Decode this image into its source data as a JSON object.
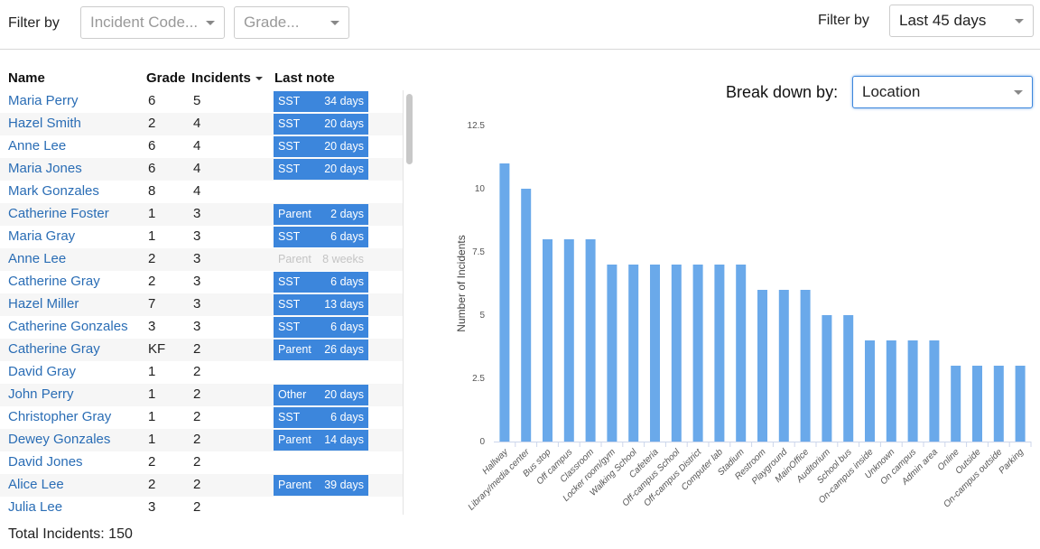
{
  "filters": {
    "left_label": "Filter by",
    "incident_code_placeholder": "Incident Code...",
    "grade_placeholder": "Grade...",
    "right_label": "Filter by",
    "time_range": "Last 45 days"
  },
  "table": {
    "headers": {
      "name": "Name",
      "grade": "Grade",
      "incidents": "Incidents",
      "last_note": "Last note"
    },
    "rows": [
      {
        "name": "Maria Perry",
        "grade": "6",
        "incidents": "5",
        "note_type": "SST",
        "note_age": "34 days",
        "note_style": "filled"
      },
      {
        "name": "Hazel Smith",
        "grade": "2",
        "incidents": "4",
        "note_type": "SST",
        "note_age": "20 days",
        "note_style": "filled"
      },
      {
        "name": "Anne Lee",
        "grade": "6",
        "incidents": "4",
        "note_type": "SST",
        "note_age": "20 days",
        "note_style": "filled"
      },
      {
        "name": "Maria Jones",
        "grade": "6",
        "incidents": "4",
        "note_type": "SST",
        "note_age": "20 days",
        "note_style": "filled"
      },
      {
        "name": "Mark Gonzales",
        "grade": "8",
        "incidents": "4",
        "note_type": "",
        "note_age": "",
        "note_style": "none"
      },
      {
        "name": "Catherine Foster",
        "grade": "1",
        "incidents": "3",
        "note_type": "Parent",
        "note_age": "2 days",
        "note_style": "filled"
      },
      {
        "name": "Maria Gray",
        "grade": "1",
        "incidents": "3",
        "note_type": "SST",
        "note_age": "6 days",
        "note_style": "filled"
      },
      {
        "name": "Anne Lee",
        "grade": "2",
        "incidents": "3",
        "note_type": "Parent",
        "note_age": "8 weeks",
        "note_style": "faded"
      },
      {
        "name": "Catherine Gray",
        "grade": "2",
        "incidents": "3",
        "note_type": "SST",
        "note_age": "6 days",
        "note_style": "filled"
      },
      {
        "name": "Hazel Miller",
        "grade": "7",
        "incidents": "3",
        "note_type": "SST",
        "note_age": "13 days",
        "note_style": "filled"
      },
      {
        "name": "Catherine Gonzales",
        "grade": "3",
        "incidents": "3",
        "note_type": "SST",
        "note_age": "6 days",
        "note_style": "filled"
      },
      {
        "name": "Catherine Gray",
        "grade": "KF",
        "incidents": "2",
        "note_type": "Parent",
        "note_age": "26 days",
        "note_style": "filled"
      },
      {
        "name": "David Gray",
        "grade": "1",
        "incidents": "2",
        "note_type": "",
        "note_age": "",
        "note_style": "none"
      },
      {
        "name": "John Perry",
        "grade": "1",
        "incidents": "2",
        "note_type": "Other",
        "note_age": "20 days",
        "note_style": "filled"
      },
      {
        "name": "Christopher Gray",
        "grade": "1",
        "incidents": "2",
        "note_type": "SST",
        "note_age": "6 days",
        "note_style": "filled"
      },
      {
        "name": "Dewey Gonzales",
        "grade": "1",
        "incidents": "2",
        "note_type": "Parent",
        "note_age": "14 days",
        "note_style": "filled"
      },
      {
        "name": "David Jones",
        "grade": "2",
        "incidents": "2",
        "note_type": "",
        "note_age": "",
        "note_style": "none"
      },
      {
        "name": "Alice Lee",
        "grade": "2",
        "incidents": "2",
        "note_type": "Parent",
        "note_age": "39 days",
        "note_style": "filled"
      },
      {
        "name": "Julia Lee",
        "grade": "3",
        "incidents": "2",
        "note_type": "",
        "note_age": "",
        "note_style": "none"
      }
    ],
    "total_label": "Total Incidents: 150"
  },
  "breakdown": {
    "label": "Break down by:",
    "value": "Location"
  },
  "colors": {
    "accent": "#3c86dc",
    "bar": "#6aa9ea",
    "name_link": "#2a6db5"
  },
  "chart_data": {
    "type": "bar",
    "ylabel": "Number of Incidents",
    "xlabel": "",
    "ylim": [
      0,
      12.5
    ],
    "yticks": [
      "0",
      "2.5",
      "5",
      "7.5",
      "10",
      "12.5"
    ],
    "grid": false,
    "categories": [
      "Hallway",
      "Library/media center",
      "Bus stop",
      "Off campus",
      "Classroom",
      "Locker room/gym",
      "Walking School",
      "Cafeteria",
      "Off-campus School",
      "Off-campus District",
      "Computer lab",
      "Stadium",
      "Restroom",
      "Playground",
      "MainOffice",
      "Auditorium",
      "School bus",
      "On-campus inside",
      "Unknown",
      "On campus",
      "Admin area",
      "Online",
      "Outside",
      "On-campus outside",
      "Parking"
    ],
    "values": [
      11,
      10,
      8,
      8,
      8,
      7,
      7,
      7,
      7,
      7,
      7,
      7,
      6,
      6,
      6,
      5,
      5,
      4,
      4,
      4,
      4,
      3,
      3,
      3,
      3
    ]
  }
}
